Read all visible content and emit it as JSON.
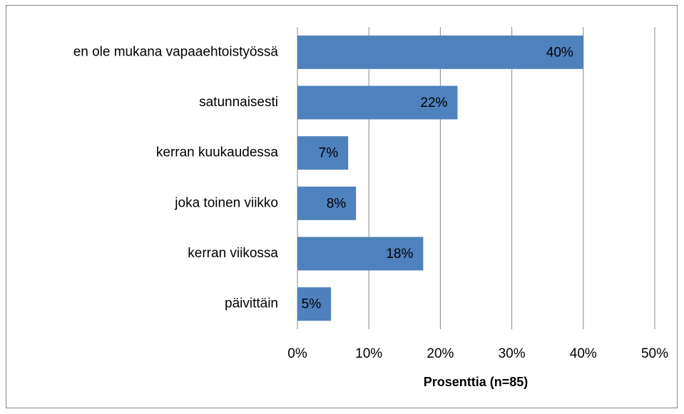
{
  "chart_data": {
    "type": "bar",
    "orientation": "horizontal",
    "x_axis_label": "Prosenttia (n=85)",
    "categories": [
      "en ole mukana vapaaehtoistyössä",
      "satunnaisesti",
      "kerran kuukaudessa",
      "joka toinen viikko",
      "kerran viikossa",
      "päivittäin"
    ],
    "values": [
      40,
      22.4,
      7.1,
      8.2,
      17.6,
      4.7
    ],
    "value_labels": [
      "40%",
      "22%",
      "7%",
      "8%",
      "18%",
      "5%"
    ],
    "color": "#4f81bd",
    "xlim": [
      0,
      50
    ],
    "xticks": [
      {
        "value": 0,
        "label": "0%"
      },
      {
        "value": 10,
        "label": "10%"
      },
      {
        "value": 20,
        "label": "20%"
      },
      {
        "value": 30,
        "label": "30%"
      },
      {
        "value": 40,
        "label": "40%"
      },
      {
        "value": 50,
        "label": "50%"
      }
    ],
    "grid": true
  }
}
